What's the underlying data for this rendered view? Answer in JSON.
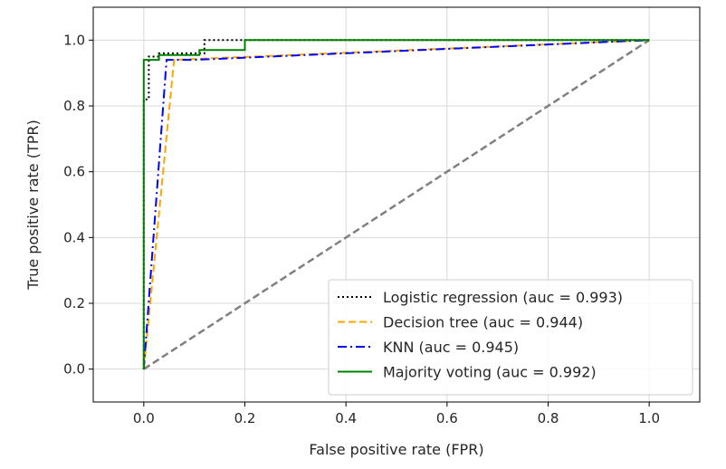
{
  "chart_data": {
    "type": "line",
    "title": "",
    "xlabel": "False positive rate (FPR)",
    "ylabel": "True positive rate (TPR)",
    "xlim": [
      -0.1,
      1.1
    ],
    "ylim": [
      -0.1,
      1.1
    ],
    "xticks": [
      0.0,
      0.2,
      0.4,
      0.6,
      0.8,
      1.0
    ],
    "yticks": [
      0.0,
      0.2,
      0.4,
      0.6,
      0.8,
      1.0
    ],
    "xtick_labels": [
      "0.0",
      "0.2",
      "0.4",
      "0.6",
      "0.8",
      "1.0"
    ],
    "ytick_labels": [
      "0.0",
      "0.2",
      "0.4",
      "0.6",
      "0.8",
      "1.0"
    ],
    "grid": true,
    "legend_position": "lower-right",
    "series": [
      {
        "name": "Logistic regression (auc = 0.993)",
        "color": "#000000",
        "dash": "dotted",
        "x": [
          0.0,
          0.0,
          0.01,
          0.01,
          0.03,
          0.03,
          0.12,
          0.12,
          0.2,
          0.2,
          1.0
        ],
        "y": [
          0.0,
          0.82,
          0.82,
          0.95,
          0.95,
          0.96,
          0.96,
          1.0,
          1.0,
          1.0,
          1.0
        ]
      },
      {
        "name": "Decision tree (auc = 0.944)",
        "color": "#ffa500",
        "dash": "dashed",
        "x": [
          0.0,
          0.06,
          1.0
        ],
        "y": [
          0.0,
          0.94,
          1.0
        ]
      },
      {
        "name": "KNN (auc = 0.945)",
        "color": "#0000ff",
        "dash": "dashdot",
        "x": [
          0.0,
          0.045,
          0.1,
          1.0
        ],
        "y": [
          0.0,
          0.94,
          0.94,
          1.0
        ]
      },
      {
        "name": "Majority voting (auc = 0.992)",
        "color": "#008000",
        "dash": "solid",
        "x": [
          0.0,
          0.0,
          0.03,
          0.03,
          0.11,
          0.11,
          0.2,
          0.2,
          1.0
        ],
        "y": [
          0.0,
          0.94,
          0.94,
          0.955,
          0.955,
          0.97,
          0.97,
          1.0,
          1.0
        ]
      },
      {
        "name": "",
        "color": "#808080",
        "dash": "dashed",
        "x": [
          0.0,
          1.0
        ],
        "y": [
          0.0,
          1.0
        ]
      }
    ]
  }
}
